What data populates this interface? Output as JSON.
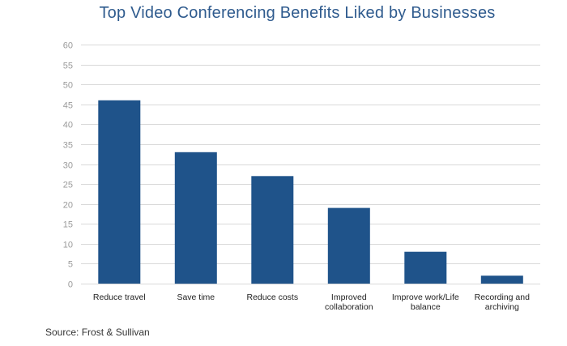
{
  "chart_data": {
    "type": "bar",
    "title": "Top Video Conferencing Benefits Liked by Businesses",
    "categories": [
      "Reduce travel",
      "Save time",
      "Reduce costs",
      "Improved collaboration",
      "Improve work/Life balance",
      "Recording and archiving"
    ],
    "category_lines": [
      [
        "Reduce travel"
      ],
      [
        "Save time"
      ],
      [
        "Reduce costs"
      ],
      [
        "Improved",
        "collaboration"
      ],
      [
        "Improve work/Life",
        "balance"
      ],
      [
        "Recording and",
        "archiving"
      ]
    ],
    "values": [
      46,
      33,
      27,
      19,
      8,
      2
    ],
    "ylim": [
      0,
      60
    ],
    "yticks": [
      0,
      5,
      10,
      15,
      20,
      25,
      30,
      35,
      40,
      45,
      50,
      55,
      60
    ],
    "grid": true,
    "colors": {
      "bar": "#1f538a",
      "grid": "#d9d9d9",
      "title": "#2f5b8e"
    },
    "source": "Source: Frost & Sullivan"
  }
}
